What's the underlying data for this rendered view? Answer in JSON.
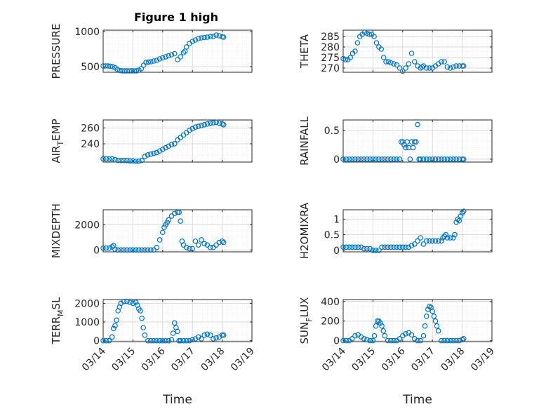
{
  "title": "Figure 1 high",
  "colors": {
    "marker": "#0072BD",
    "axes": "#262626",
    "grid": "#d9d9d9"
  },
  "chart_data": [
    {
      "type": "scatter",
      "ylabel": "PRESSURE",
      "ylim": [
        420,
        1020
      ],
      "xlim": [
        0,
        5
      ],
      "yticks": [
        {
          "v": 500,
          "label": "500"
        },
        {
          "v": 1000,
          "label": "1000"
        }
      ],
      "x": [
        0,
        0.08,
        0.16,
        0.24,
        0.32,
        0.4,
        0.48,
        0.56,
        0.64,
        0.72,
        0.8,
        0.88,
        0.96,
        1.04,
        1.12,
        1.2,
        1.28,
        1.36,
        1.44,
        1.52,
        1.6,
        1.7,
        1.8,
        1.9,
        2.0,
        2.1,
        2.2,
        2.3,
        2.4,
        2.5,
        2.6,
        2.7,
        2.75,
        2.8,
        2.9,
        3.0,
        3.1,
        3.2,
        3.3,
        3.4,
        3.5,
        3.6,
        3.7,
        3.8,
        3.9,
        4.0,
        4.05
      ],
      "y": [
        510,
        510,
        510,
        505,
        500,
        485,
        460,
        445,
        440,
        440,
        440,
        440,
        440,
        440,
        440,
        450,
        470,
        520,
        560,
        565,
        570,
        580,
        590,
        610,
        625,
        640,
        655,
        670,
        685,
        600,
        640,
        700,
        720,
        780,
        830,
        860,
        880,
        900,
        910,
        915,
        920,
        930,
        930,
        950,
        940,
        925,
        920
      ]
    },
    {
      "type": "scatter",
      "ylabel": "THETA",
      "ylim": [
        268,
        288
      ],
      "xlim": [
        0,
        5
      ],
      "yticks": [
        {
          "v": 270,
          "label": "270"
        },
        {
          "v": 275,
          "label": "275"
        },
        {
          "v": 280,
          "label": "280"
        },
        {
          "v": 285,
          "label": "285"
        }
      ],
      "x": [
        0,
        0.08,
        0.16,
        0.24,
        0.32,
        0.4,
        0.48,
        0.56,
        0.64,
        0.72,
        0.8,
        0.88,
        0.96,
        1.04,
        1.12,
        1.2,
        1.28,
        1.36,
        1.44,
        1.52,
        1.6,
        1.7,
        1.8,
        1.9,
        2.0,
        2.1,
        2.2,
        2.3,
        2.4,
        2.5,
        2.6,
        2.65,
        2.7,
        2.8,
        2.9,
        3.0,
        3.1,
        3.2,
        3.3,
        3.4,
        3.5,
        3.6,
        3.7,
        3.8,
        3.9,
        4.0,
        4.05
      ],
      "y": [
        274.5,
        274,
        274,
        275,
        277,
        278,
        282,
        285,
        286,
        287,
        286.5,
        286,
        286,
        285,
        282,
        280,
        279,
        275,
        273,
        273,
        272.5,
        272,
        271.5,
        270,
        268.5,
        270,
        272,
        277,
        273,
        271,
        270,
        270.5,
        271,
        270,
        270,
        270,
        271,
        272,
        273,
        273,
        270.5,
        270,
        270.5,
        271,
        271,
        271,
        271
      ]
    },
    {
      "type": "scatter",
      "ylabel": "AIR_TEMP",
      "ylim": [
        217,
        270
      ],
      "xlim": [
        0,
        5
      ],
      "yticks": [
        {
          "v": 240,
          "label": "240"
        },
        {
          "v": 260,
          "label": "260"
        }
      ],
      "x": [
        0,
        0.1,
        0.2,
        0.3,
        0.4,
        0.5,
        0.6,
        0.7,
        0.8,
        0.9,
        1.0,
        1.1,
        1.2,
        1.3,
        1.4,
        1.5,
        1.6,
        1.7,
        1.8,
        1.9,
        2.0,
        2.1,
        2.2,
        2.3,
        2.4,
        2.5,
        2.6,
        2.7,
        2.8,
        2.9,
        3.0,
        3.1,
        3.2,
        3.3,
        3.4,
        3.5,
        3.6,
        3.7,
        3.8,
        3.9,
        4.0,
        4.05
      ],
      "y": [
        221,
        221,
        221,
        221,
        220,
        219,
        219,
        219,
        219,
        218.5,
        218.5,
        218,
        218,
        219,
        224,
        226,
        227,
        228,
        229,
        231,
        233,
        235,
        237,
        239,
        240,
        245,
        248,
        251,
        254,
        257,
        259,
        261,
        262,
        263,
        264,
        265,
        266,
        266.5,
        267,
        266,
        265,
        264
      ]
    },
    {
      "type": "scatter",
      "ylabel": "RAINFALL",
      "ylim": [
        -0.05,
        0.68
      ],
      "xlim": [
        0,
        5
      ],
      "yticks": [
        {
          "v": 0,
          "label": "0"
        },
        {
          "v": 0.5,
          "label": "0.5"
        }
      ],
      "x": [
        0,
        0.1,
        0.2,
        0.3,
        0.4,
        0.5,
        0.6,
        0.7,
        0.8,
        0.9,
        1.0,
        1.1,
        1.2,
        1.3,
        1.4,
        1.5,
        1.6,
        1.7,
        1.8,
        1.9,
        1.95,
        2.0,
        2.05,
        2.1,
        2.15,
        2.2,
        2.25,
        2.3,
        2.35,
        2.4,
        2.45,
        2.5,
        2.55,
        2.6,
        2.7,
        2.8,
        2.9,
        3.0,
        3.1,
        3.2,
        3.3,
        3.4,
        3.5,
        3.6,
        3.7,
        3.8,
        3.9,
        4.0,
        4.05
      ],
      "y": [
        0,
        0,
        0,
        0,
        0,
        0,
        0,
        0,
        0,
        0,
        0,
        0,
        0,
        0,
        0,
        0,
        0,
        0,
        0,
        0,
        0.3,
        0.3,
        0.25,
        0.2,
        0.3,
        0.2,
        0,
        0.3,
        0.2,
        0.3,
        0.3,
        0.6,
        0,
        0,
        0,
        0,
        0,
        0,
        0,
        0,
        0,
        0,
        0,
        0,
        0,
        0,
        0,
        0,
        0
      ]
    },
    {
      "type": "scatter",
      "ylabel": "MIXDEPTH",
      "ylim": [
        -150,
        3200
      ],
      "xlim": [
        0,
        5
      ],
      "yticks": [
        {
          "v": 0,
          "label": "0"
        },
        {
          "v": 2000,
          "label": "2000"
        }
      ],
      "x": [
        0,
        0.1,
        0.2,
        0.3,
        0.35,
        0.4,
        0.5,
        0.6,
        0.7,
        0.8,
        0.9,
        1.0,
        1.1,
        1.2,
        1.3,
        1.4,
        1.5,
        1.6,
        1.7,
        1.8,
        1.9,
        2.0,
        2.05,
        2.1,
        2.15,
        2.2,
        2.3,
        2.4,
        2.5,
        2.55,
        2.6,
        2.65,
        2.7,
        2.8,
        2.9,
        3.0,
        3.1,
        3.2,
        3.3,
        3.4,
        3.5,
        3.6,
        3.7,
        3.8,
        3.9,
        4.0,
        4.05
      ],
      "y": [
        150,
        150,
        150,
        250,
        350,
        50,
        0,
        0,
        0,
        0,
        0,
        0,
        0,
        0,
        0,
        0,
        0,
        0,
        0,
        200,
        800,
        1400,
        1800,
        2000,
        2200,
        2400,
        2700,
        2900,
        3000,
        3000,
        2300,
        700,
        400,
        200,
        100,
        100,
        700,
        400,
        800,
        500,
        400,
        200,
        200,
        400,
        600,
        700,
        600
      ]
    },
    {
      "type": "scatter",
      "ylabel": "H2OMIXRA",
      "ylim": [
        -0.05,
        1.3
      ],
      "xlim": [
        0,
        5
      ],
      "yticks": [
        {
          "v": 0,
          "label": "0"
        },
        {
          "v": 0.5,
          "label": "0.5"
        },
        {
          "v": 1,
          "label": "1"
        }
      ],
      "x": [
        0,
        0.1,
        0.2,
        0.3,
        0.4,
        0.5,
        0.6,
        0.7,
        0.8,
        0.9,
        1.0,
        1.1,
        1.2,
        1.3,
        1.4,
        1.5,
        1.6,
        1.7,
        1.8,
        1.9,
        2.0,
        2.1,
        2.2,
        2.3,
        2.4,
        2.5,
        2.6,
        2.7,
        2.8,
        2.9,
        3.0,
        3.1,
        3.2,
        3.3,
        3.35,
        3.4,
        3.45,
        3.5,
        3.6,
        3.7,
        3.75,
        3.8,
        3.85,
        3.9,
        3.95,
        4.0,
        4.05
      ],
      "y": [
        0.1,
        0.1,
        0.1,
        0.1,
        0.1,
        0.1,
        0.1,
        0.05,
        0.05,
        0.05,
        0,
        0,
        0,
        0.1,
        0.1,
        0.1,
        0.1,
        0.1,
        0.1,
        0.1,
        0.1,
        0.1,
        0.1,
        0.15,
        0.2,
        0.3,
        0.4,
        0.2,
        0.3,
        0.3,
        0.3,
        0.3,
        0.3,
        0.3,
        0.4,
        0.45,
        0.5,
        0.4,
        0.4,
        0.4,
        0.5,
        0.9,
        1.0,
        0.95,
        1.1,
        1.2,
        1.25
      ]
    },
    {
      "type": "scatter",
      "ylabel": "TERR_MSL",
      "ylim": [
        -50,
        2200
      ],
      "xlim": [
        0,
        5
      ],
      "yticks": [
        {
          "v": 0,
          "label": "0"
        },
        {
          "v": 1000,
          "label": "1000"
        },
        {
          "v": 2000,
          "label": "2000"
        }
      ],
      "x": [
        0,
        0.1,
        0.2,
        0.3,
        0.35,
        0.4,
        0.45,
        0.5,
        0.55,
        0.6,
        0.7,
        0.8,
        0.9,
        1.0,
        1.1,
        1.15,
        1.2,
        1.25,
        1.3,
        1.35,
        1.4,
        1.5,
        1.6,
        1.7,
        1.8,
        1.9,
        2.0,
        2.1,
        2.2,
        2.3,
        2.35,
        2.4,
        2.45,
        2.5,
        2.55,
        2.6,
        2.7,
        2.8,
        2.9,
        3.0,
        3.1,
        3.2,
        3.3,
        3.4,
        3.5,
        3.6,
        3.7,
        3.8,
        3.9,
        4.0,
        4.05
      ],
      "y": [
        0,
        0,
        0,
        200,
        650,
        800,
        1100,
        1600,
        1800,
        2000,
        2100,
        2100,
        2050,
        2000,
        2050,
        1900,
        1700,
        1600,
        1200,
        700,
        300,
        0,
        0,
        0,
        0,
        0,
        0,
        0,
        0,
        50,
        400,
        950,
        700,
        500,
        0,
        0,
        0,
        0,
        0,
        50,
        100,
        200,
        100,
        300,
        350,
        300,
        100,
        150,
        200,
        300,
        300
      ]
    },
    {
      "type": "scatter",
      "ylabel": "SUN_FLUX",
      "ylim": [
        -10,
        420
      ],
      "xlim": [
        0,
        5
      ],
      "yticks": [
        {
          "v": 0,
          "label": "0"
        },
        {
          "v": 200,
          "label": "200"
        },
        {
          "v": 400,
          "label": "400"
        }
      ],
      "x": [
        0,
        0.1,
        0.2,
        0.3,
        0.4,
        0.5,
        0.6,
        0.7,
        0.8,
        0.9,
        1.0,
        1.05,
        1.1,
        1.15,
        1.2,
        1.25,
        1.3,
        1.35,
        1.4,
        1.5,
        1.6,
        1.7,
        1.8,
        1.9,
        2.0,
        2.1,
        2.2,
        2.3,
        2.4,
        2.5,
        2.6,
        2.7,
        2.75,
        2.8,
        2.85,
        2.9,
        2.95,
        3.0,
        3.05,
        3.1,
        3.15,
        3.2,
        3.3,
        3.4,
        3.5,
        3.6,
        3.7,
        3.8,
        3.9,
        4.0,
        4.05
      ],
      "y": [
        0,
        0,
        0,
        20,
        50,
        60,
        40,
        20,
        10,
        0,
        0,
        50,
        150,
        200,
        200,
        180,
        150,
        100,
        50,
        0,
        0,
        0,
        0,
        20,
        50,
        70,
        80,
        60,
        20,
        0,
        0,
        50,
        150,
        250,
        320,
        350,
        340,
        300,
        250,
        200,
        150,
        100,
        0,
        0,
        0,
        0,
        0,
        0,
        0,
        10,
        20
      ]
    }
  ],
  "x_axis": {
    "ticks": [
      {
        "v": 0,
        "label": "03/14"
      },
      {
        "v": 1,
        "label": "03/15"
      },
      {
        "v": 2,
        "label": "03/16"
      },
      {
        "v": 3,
        "label": "03/17"
      },
      {
        "v": 4,
        "label": "03/18"
      },
      {
        "v": 5,
        "label": "03/19"
      }
    ],
    "xlabel": "Time"
  },
  "ylabels_display": [
    {
      "main": "PRESSURE",
      "sub": ""
    },
    {
      "main": "THETA",
      "sub": ""
    },
    {
      "pre": "AIR",
      "sub": "T",
      "post": "EMP"
    },
    {
      "main": "RAINFALL",
      "sub": ""
    },
    {
      "main": "MIXDEPTH",
      "sub": ""
    },
    {
      "main": "H2OMIXRA",
      "sub": ""
    },
    {
      "pre": "TERR",
      "sub": "M",
      "post": "SL"
    },
    {
      "pre": "SUN",
      "sub": "F",
      "post": "LUX"
    }
  ]
}
